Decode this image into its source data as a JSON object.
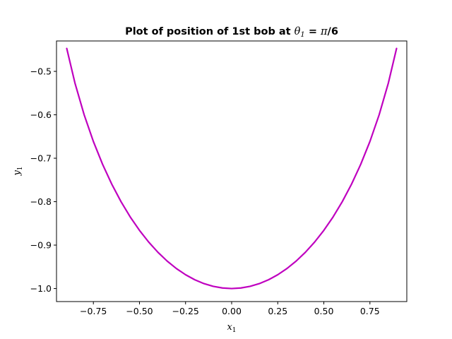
{
  "chart_data": {
    "type": "line",
    "title": {
      "prefix": "Plot of position of 1st bob at ",
      "math_var": "θ",
      "math_sub": "1",
      "suffix": " = ",
      "math_pi": "π",
      "math_rest": "/6"
    },
    "xlabel": {
      "var": "x",
      "sub": "1"
    },
    "ylabel": {
      "var": "y",
      "sub": "1"
    },
    "xlim": [
      -0.95,
      0.95
    ],
    "ylim": [
      -1.03,
      -0.43
    ],
    "xticks": [
      -0.75,
      -0.5,
      -0.25,
      0.0,
      0.25,
      0.5,
      0.75
    ],
    "xtick_labels": [
      "−0.75",
      "−0.50",
      "−0.25",
      "0.00",
      "0.25",
      "0.50",
      "0.75"
    ],
    "yticks": [
      -0.5,
      -0.6,
      -0.7,
      -0.8,
      -0.9,
      -1.0
    ],
    "ytick_labels": [
      "−0.5",
      "−0.6",
      "−0.7",
      "−0.8",
      "−0.9",
      "−1.0"
    ],
    "grid": false,
    "series": [
      {
        "color": "#bf00bf",
        "x": [
          -0.8944,
          -0.85,
          -0.8,
          -0.75,
          -0.7,
          -0.65,
          -0.6,
          -0.55,
          -0.5,
          -0.45,
          -0.4,
          -0.35,
          -0.3,
          -0.25,
          -0.2,
          -0.15,
          -0.1,
          -0.05,
          0.0,
          0.05,
          0.1,
          0.15,
          0.2,
          0.25,
          0.3,
          0.35,
          0.4,
          0.45,
          0.5,
          0.55,
          0.6,
          0.65,
          0.7,
          0.75,
          0.8,
          0.85,
          0.8944
        ],
        "y": [
          -0.4472,
          -0.5268,
          -0.6,
          -0.6614,
          -0.7141,
          -0.7599,
          -0.8,
          -0.8352,
          -0.866,
          -0.893,
          -0.9165,
          -0.9367,
          -0.9539,
          -0.9682,
          -0.9798,
          -0.9887,
          -0.995,
          -0.9987,
          -1.0,
          -0.9987,
          -0.995,
          -0.9887,
          -0.9798,
          -0.9682,
          -0.9539,
          -0.9367,
          -0.9165,
          -0.893,
          -0.866,
          -0.8352,
          -0.8,
          -0.7599,
          -0.7141,
          -0.6614,
          -0.6,
          -0.5268,
          -0.4472
        ]
      }
    ]
  }
}
